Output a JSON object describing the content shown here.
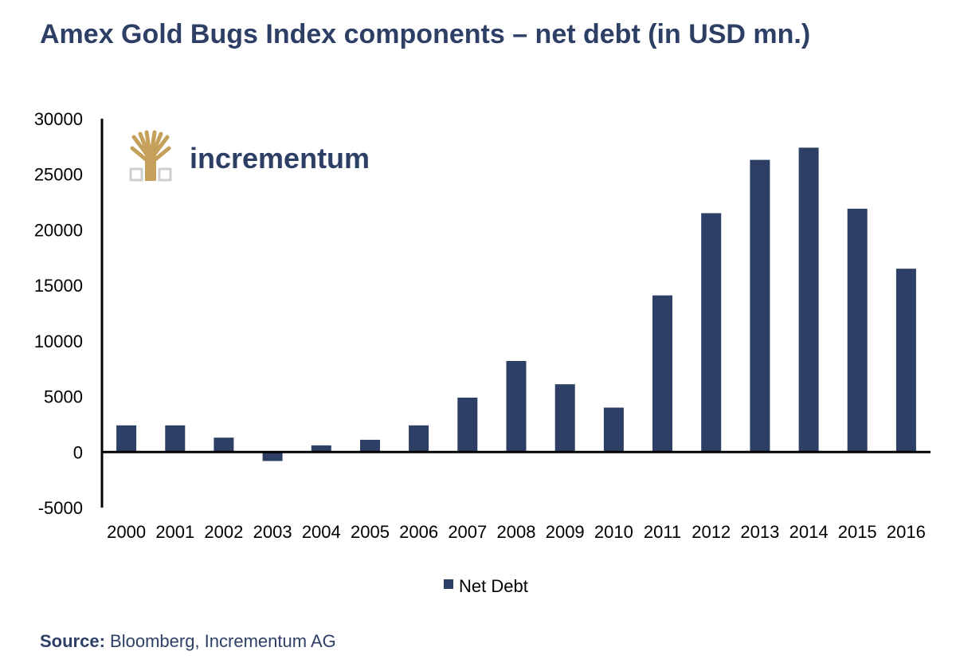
{
  "title": "Amex Gold Bugs Index components – net debt (in USD mn.)",
  "logo": {
    "text": "incrementum",
    "icon": "tree-icon"
  },
  "source": {
    "label": "Source:",
    "text": "Bloomberg, Incrementum AG"
  },
  "colors": {
    "bar": "#2e3f66",
    "title": "#2e3f66",
    "logo_gold": "#c5a05a",
    "logo_gray": "#cfcfcf"
  },
  "chart_data": {
    "type": "bar",
    "title": "Amex Gold Bugs Index components – net debt (in USD mn.)",
    "categories": [
      "2000",
      "2001",
      "2002",
      "2003",
      "2004",
      "2005",
      "2006",
      "2007",
      "2008",
      "2009",
      "2010",
      "2011",
      "2012",
      "2013",
      "2014",
      "2015",
      "2016"
    ],
    "series": [
      {
        "name": "Net Debt",
        "values": [
          2400,
          2400,
          1300,
          -800,
          600,
          1100,
          2400,
          4900,
          8200,
          6100,
          4000,
          14100,
          21500,
          26300,
          27400,
          21900,
          16500
        ]
      }
    ],
    "xlabel": "",
    "ylabel": "",
    "ylim": [
      -5000,
      30000
    ],
    "yticks": [
      "30000",
      "25000",
      "20000",
      "15000",
      "10000",
      "5000",
      "0",
      "-5000"
    ],
    "grid": false,
    "legend": "bottom-center"
  }
}
